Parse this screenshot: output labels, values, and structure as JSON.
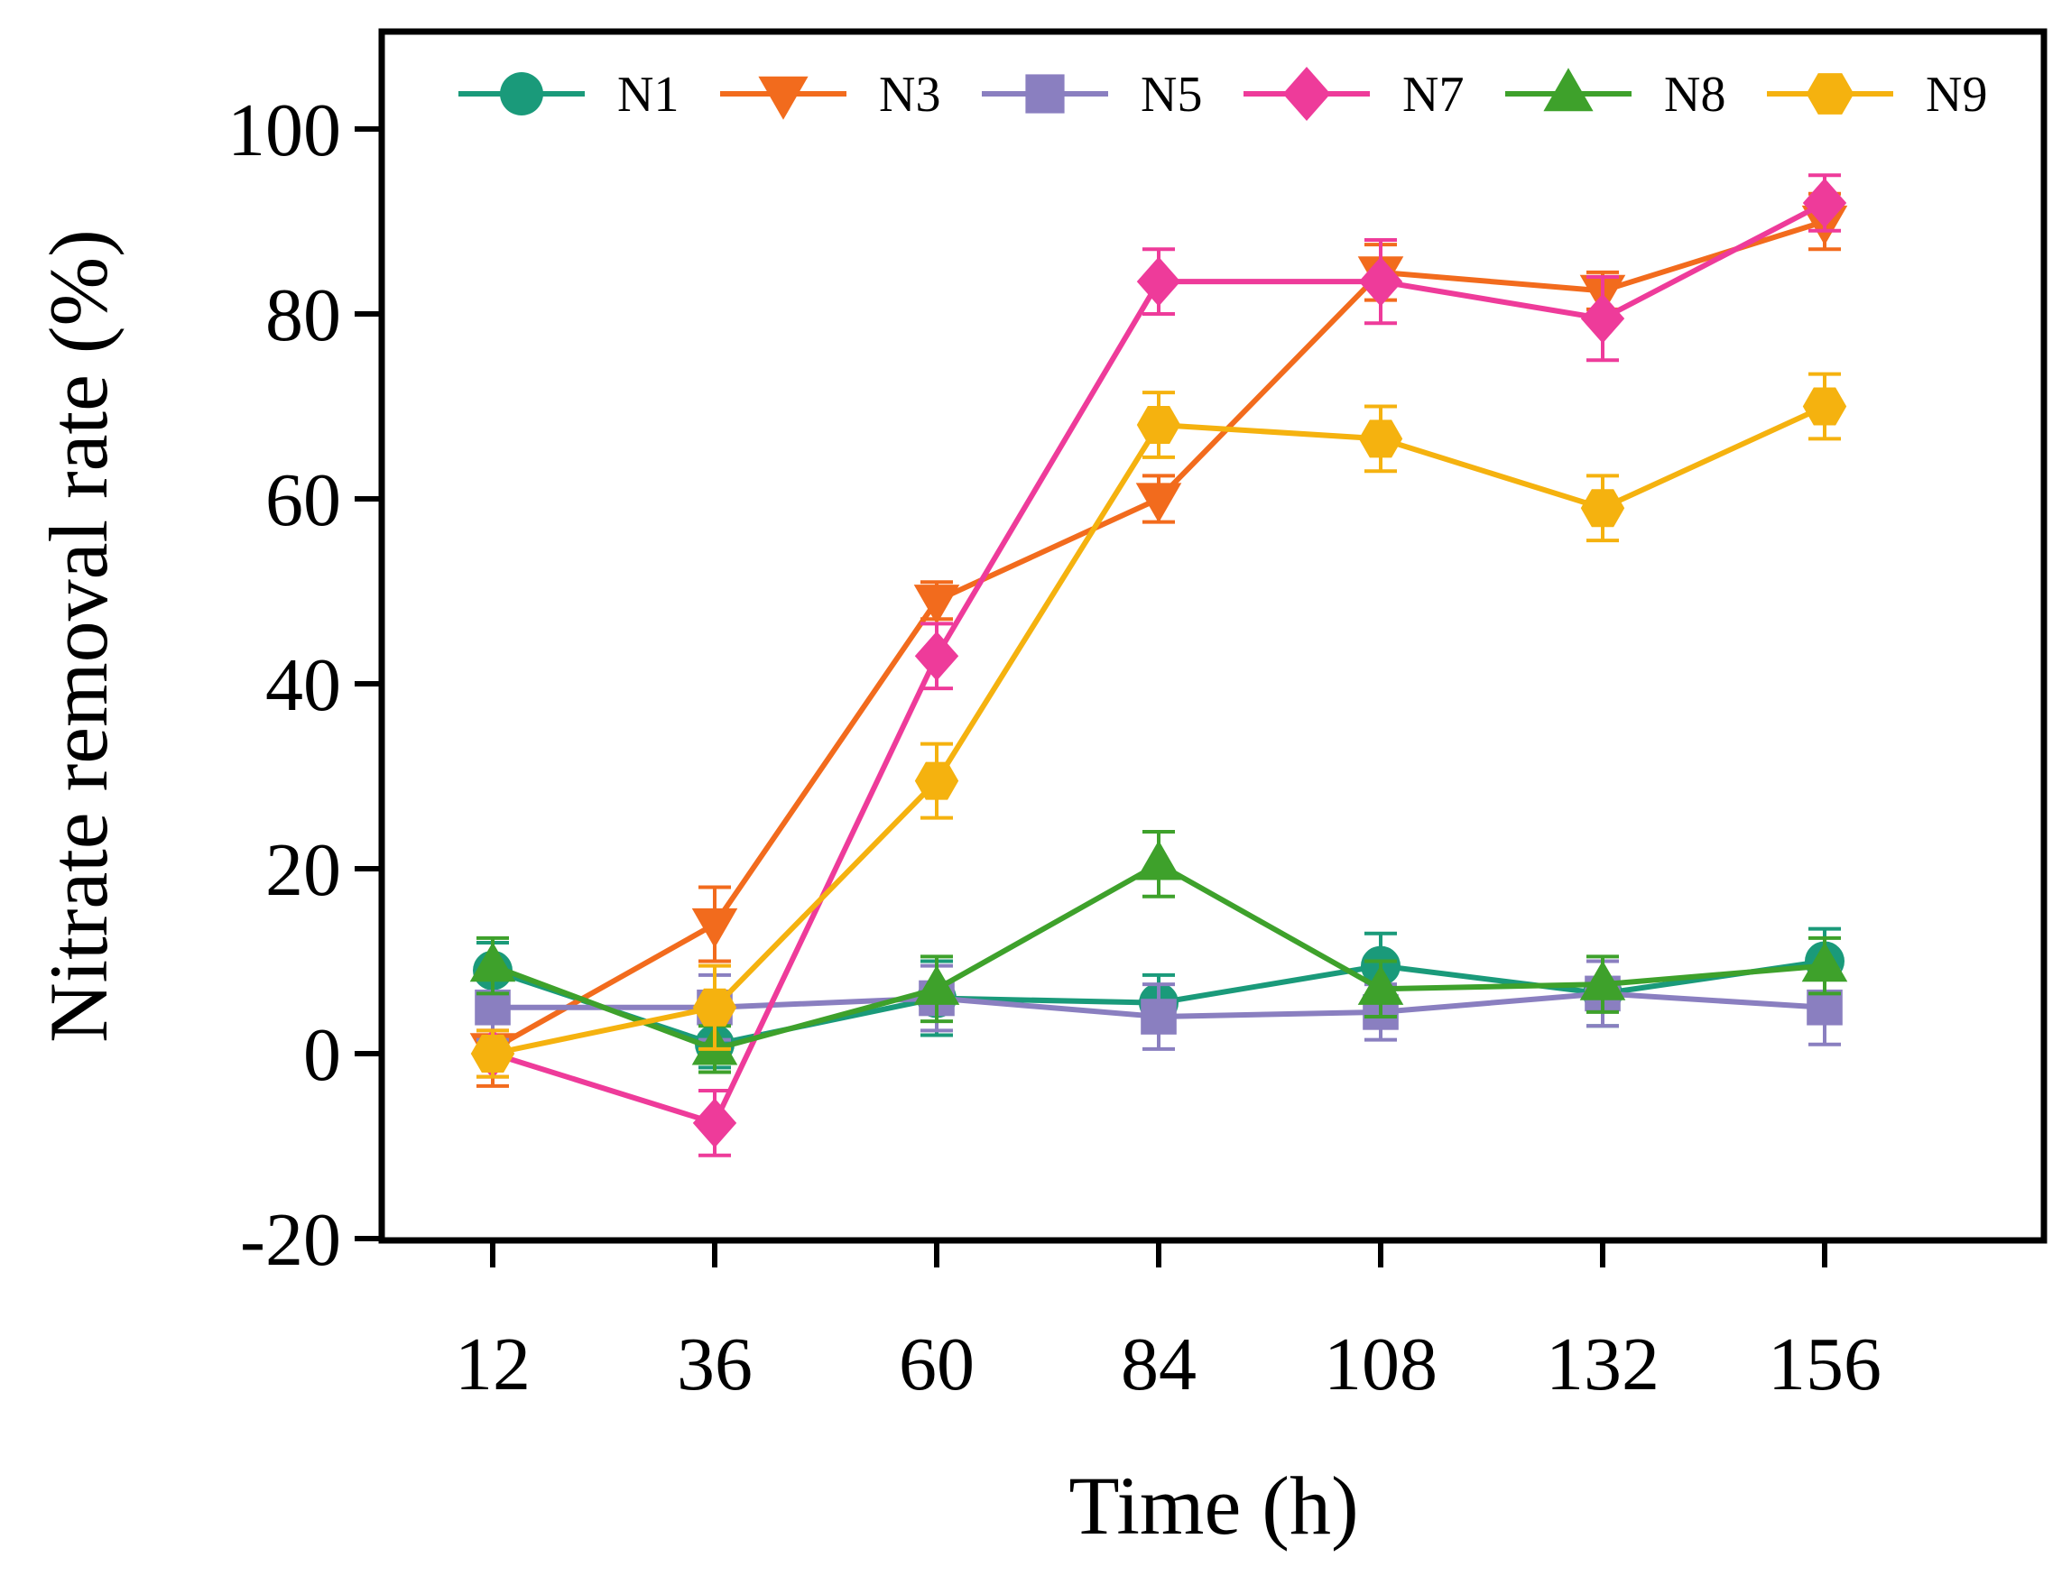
{
  "chart_data": {
    "type": "line",
    "xlabel": "Time (h)",
    "ylabel": "Nitrate removal rate (%)",
    "ylim": [
      -20,
      110
    ],
    "yticks": [
      -20,
      0,
      20,
      40,
      60,
      80,
      100
    ],
    "x": [
      12,
      36,
      60,
      84,
      108,
      132,
      156
    ],
    "legend_position": "top",
    "series": [
      {
        "name": "N1",
        "color": "#1a9a7a",
        "marker": "circle",
        "values": [
          9,
          1,
          6,
          5.5,
          9.5,
          6.5,
          10
        ],
        "errors": [
          3,
          2.5,
          4,
          3,
          3.5,
          3.5,
          3.5
        ]
      },
      {
        "name": "N3",
        "color": "#f26b1d",
        "marker": "triangle-down",
        "values": [
          0.5,
          14,
          49,
          60,
          84.5,
          82.5,
          90
        ],
        "errors": [
          4,
          4,
          2,
          2.5,
          3,
          2,
          3
        ]
      },
      {
        "name": "N5",
        "color": "#8a7fc0",
        "marker": "square",
        "values": [
          5,
          5,
          6,
          4,
          4.5,
          6.5,
          5
        ],
        "errors": [
          3.5,
          3.5,
          3.5,
          3.5,
          3,
          3.5,
          4
        ]
      },
      {
        "name": "N7",
        "color": "#ee3b9a",
        "marker": "diamond",
        "values": [
          0,
          -7.5,
          43,
          83.5,
          83.5,
          79.5,
          92
        ],
        "errors": [
          2.5,
          3.5,
          3.5,
          3.5,
          4.5,
          4.5,
          3
        ]
      },
      {
        "name": "N8",
        "color": "#3ea12b",
        "marker": "triangle-up",
        "values": [
          9.5,
          0.5,
          7,
          20.5,
          7,
          7.5,
          9.5
        ],
        "errors": [
          3,
          2.5,
          3.5,
          3.5,
          3,
          3,
          3
        ]
      },
      {
        "name": "N9",
        "color": "#f5b20f",
        "marker": "hexagon",
        "values": [
          0,
          5,
          29.5,
          68,
          66.5,
          59,
          70
        ],
        "errors": [
          2.5,
          4.5,
          4,
          3.5,
          3.5,
          3.5,
          3.5
        ]
      }
    ]
  }
}
